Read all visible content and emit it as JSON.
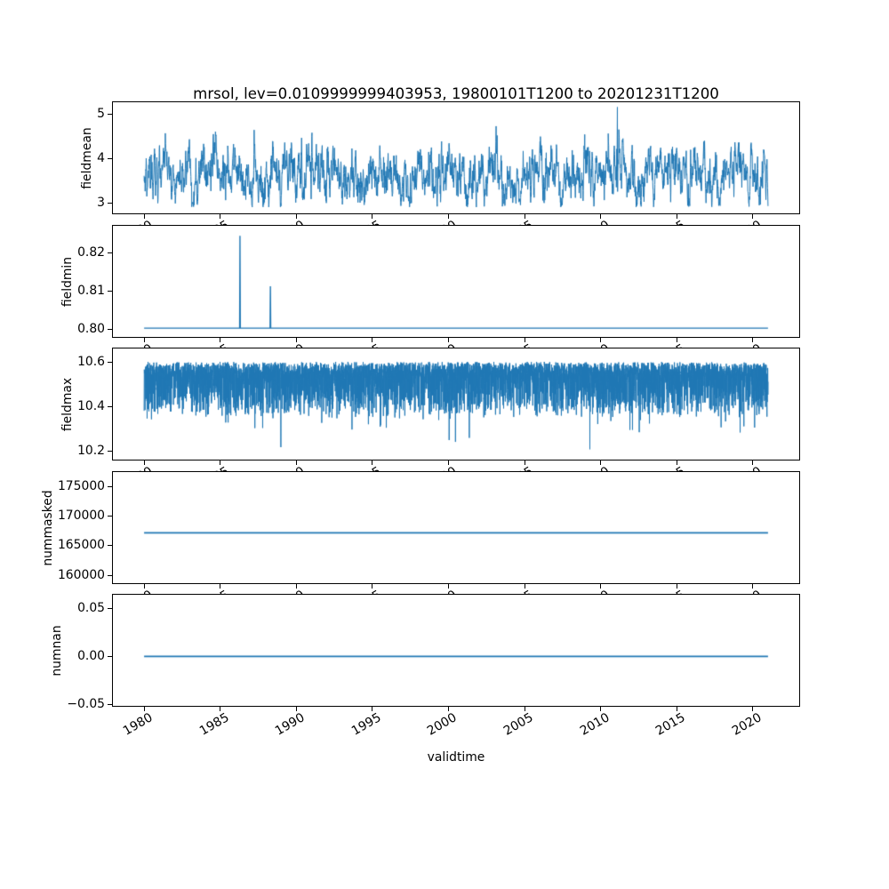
{
  "title": "mrsol, lev=0.0109999999403953, 19800101T1200 to 20201231T1200",
  "line_color": "#1f77b4",
  "x_axis": {
    "label": "validtime",
    "xlim": [
      1977.95,
      2023.05
    ],
    "data_x_range": [
      1980.0,
      2021.0
    ],
    "xticks": [
      1980,
      1985,
      1990,
      1995,
      2000,
      2005,
      2010,
      2015,
      2020
    ],
    "xtick_labels": [
      "1980",
      "1985",
      "1990",
      "1995",
      "2000",
      "2005",
      "2010",
      "2015",
      "2020"
    ],
    "tick_rotation_deg": 30
  },
  "chart_data": [
    {
      "type": "line",
      "ylabel": "fieldmean",
      "ylim": [
        2.76,
        5.26
      ],
      "ytick_values": [
        3,
        4,
        5
      ],
      "ytick_labels": [
        "3",
        "4",
        "5"
      ],
      "summary": {
        "description": "dense noisy sub-annual time series",
        "mean": 3.62,
        "typical_range": [
          3.1,
          4.4
        ],
        "min": 2.9,
        "max": 5.15,
        "max_at_x": 2011.1
      }
    },
    {
      "type": "line",
      "ylabel": "fieldmin",
      "ylim": [
        0.798,
        0.8272
      ],
      "ytick_values": [
        0.8,
        0.81,
        0.82
      ],
      "ytick_labels": [
        "0.80",
        "0.81",
        "0.82"
      ],
      "baseline": 0.8003,
      "spikes": [
        {
          "x": 1986.3,
          "y": 0.8246
        },
        {
          "x": 1988.3,
          "y": 0.8113
        }
      ]
    },
    {
      "type": "line",
      "ylabel": "fieldmax",
      "ylim": [
        10.16,
        10.66
      ],
      "ytick_values": [
        10.2,
        10.4,
        10.6
      ],
      "ytick_labels": [
        "10.2",
        "10.4",
        "10.6"
      ],
      "summary": {
        "description": "dense noisy series hugging upper bound with downward spikes",
        "baseline": 10.6,
        "typical_min": 10.4,
        "min": 10.2
      }
    },
    {
      "type": "line",
      "ylabel": "nummasked",
      "ylim": [
        158650,
        177400
      ],
      "ytick_values": [
        160000,
        165000,
        170000,
        175000
      ],
      "ytick_labels": [
        "160000",
        "165000",
        "170000",
        "175000"
      ],
      "constant": 167155
    },
    {
      "type": "line",
      "ylabel": "numnan",
      "ylim": [
        -0.0514,
        0.0643
      ],
      "ytick_values": [
        -0.05,
        0,
        0.05
      ],
      "ytick_labels": [
        "−0.05",
        "0.00",
        "0.05"
      ],
      "constant": 0
    }
  ]
}
